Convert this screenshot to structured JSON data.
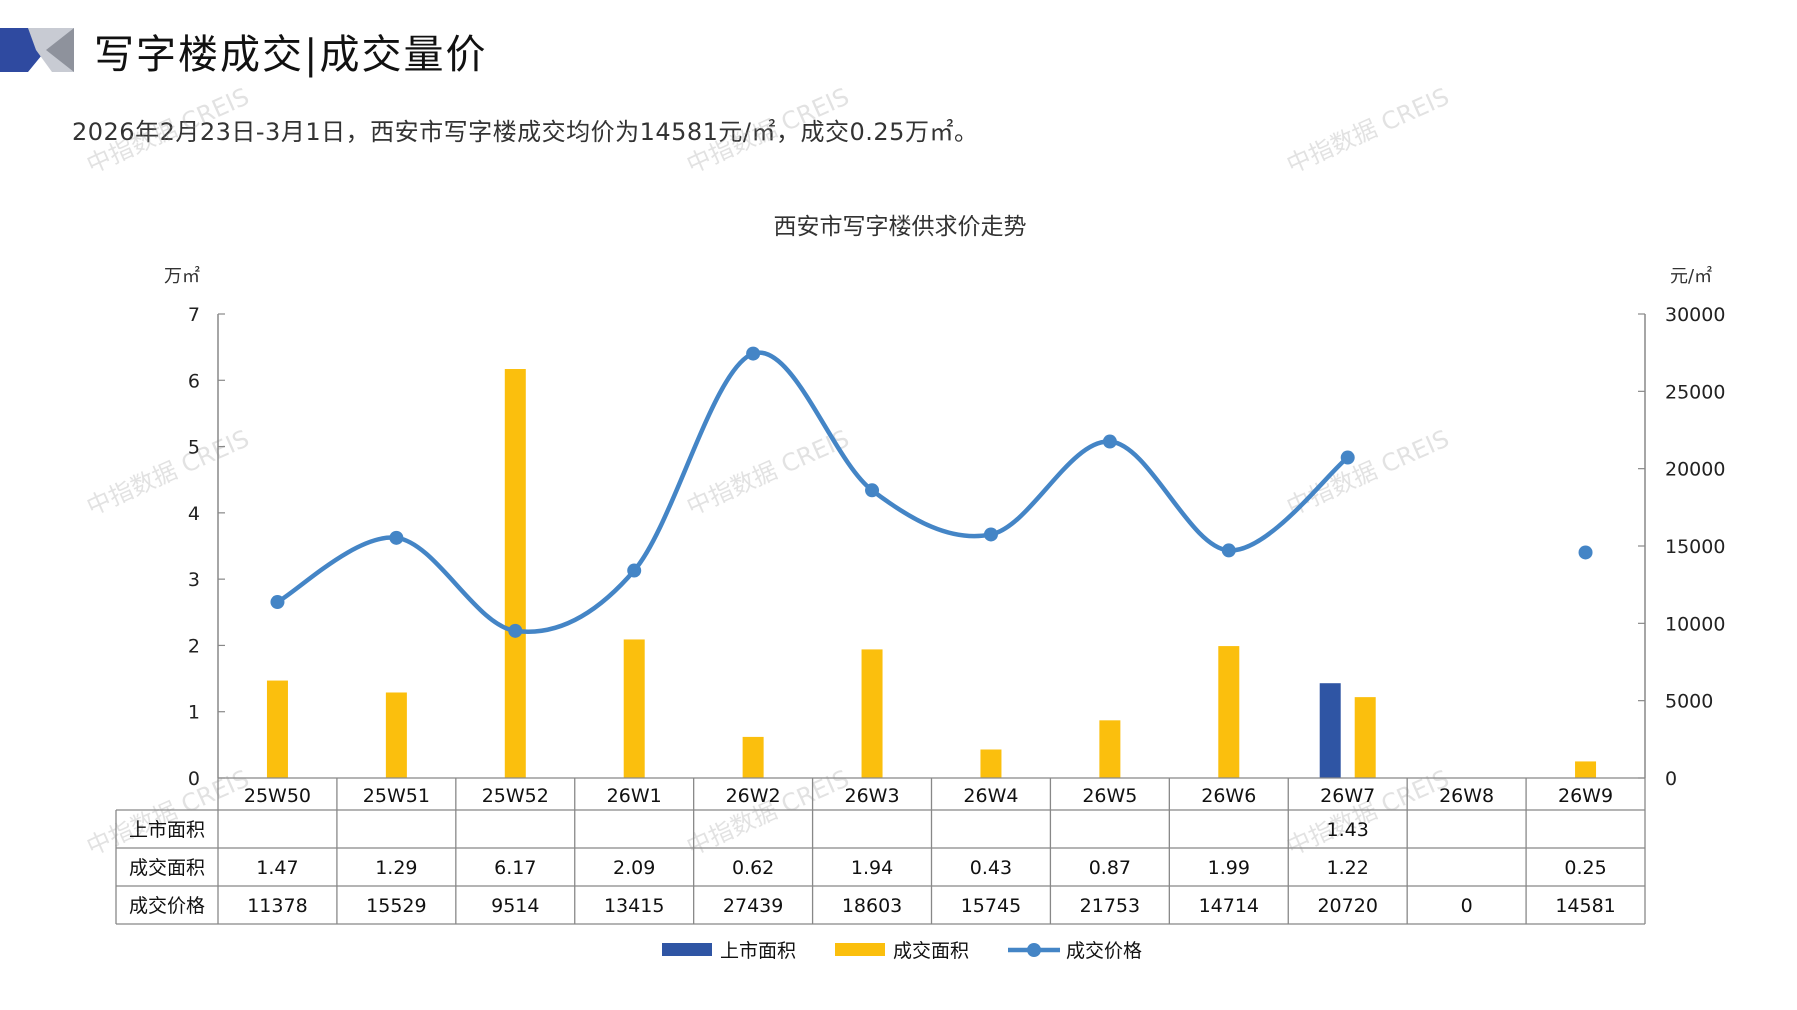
{
  "header": {
    "title": "写字楼成交|成交量价",
    "summary": "2026年2月23日-3月1日，西安市写字楼成交均价为14581元/㎡，成交0.25万㎡。"
  },
  "watermark": "中指数据 CREIS",
  "colors": {
    "supply": "#2f55a4",
    "deal_area": "#fbbf0d",
    "price": "#4485c6",
    "accent_dark": "#2f4aa0",
    "accent_gray": "#a9adb8"
  },
  "chart_data": {
    "type": "bar",
    "title": "西安市写字楼供求价走势",
    "left_unit": "万㎡",
    "right_unit": "元/㎡",
    "categories": [
      "25W50",
      "25W51",
      "25W52",
      "26W1",
      "26W2",
      "26W3",
      "26W4",
      "26W5",
      "26W6",
      "26W7",
      "26W8",
      "26W9"
    ],
    "left_axis": {
      "range": [
        0,
        7
      ],
      "ticks": [
        "0",
        "1",
        "2",
        "3",
        "4",
        "5",
        "6",
        "7"
      ]
    },
    "right_axis": {
      "range": [
        0,
        30000
      ],
      "ticks": [
        "0",
        "5000",
        "10000",
        "15000",
        "20000",
        "25000",
        "30000"
      ]
    },
    "series": [
      {
        "name": "上市面积",
        "type": "bar",
        "axis": "left",
        "values": [
          null,
          null,
          null,
          null,
          null,
          null,
          null,
          null,
          null,
          1.43,
          null,
          null
        ],
        "labels": [
          "",
          "",
          "",
          "",
          "",
          "",
          "",
          "",
          "",
          "1.43",
          "",
          ""
        ]
      },
      {
        "name": "成交面积",
        "type": "bar",
        "axis": "left",
        "values": [
          1.47,
          1.29,
          6.17,
          2.09,
          0.62,
          1.94,
          0.43,
          0.87,
          1.99,
          1.22,
          null,
          0.25
        ],
        "labels": [
          "1.47",
          "1.29",
          "6.17",
          "2.09",
          "0.62",
          "1.94",
          "0.43",
          "0.87",
          "1.99",
          "1.22",
          "",
          "0.25"
        ]
      },
      {
        "name": "成交价格",
        "type": "line",
        "axis": "right",
        "values": [
          11378,
          15529,
          9514,
          13415,
          27439,
          18603,
          15745,
          21753,
          14714,
          20720,
          0,
          14581
        ],
        "labels": [
          "11378",
          "15529",
          "9514",
          "13415",
          "27439",
          "18603",
          "15745",
          "21753",
          "14714",
          "20720",
          "0",
          "14581"
        ]
      }
    ],
    "legend": [
      "上市面积",
      "成交面积",
      "成交价格"
    ],
    "legend_position": "bottom",
    "grid": false
  }
}
